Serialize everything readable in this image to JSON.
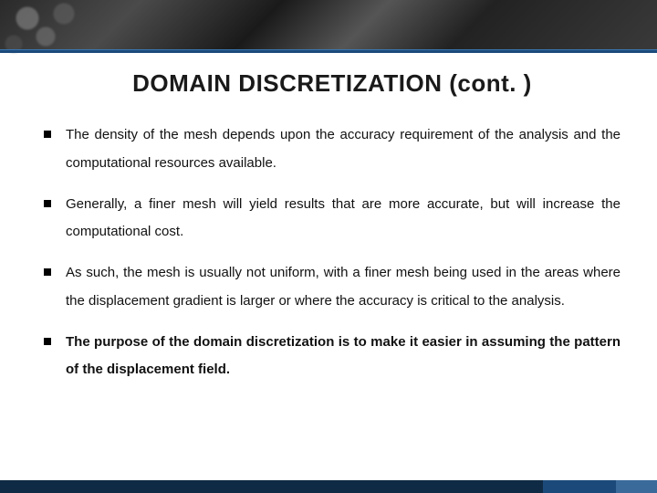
{
  "banner": {
    "bg_gradient": "gears-grayscale",
    "accent_line_color": "#1b4a7a"
  },
  "title": "DOMAIN DISCRETIZATION (cont. )",
  "bullets": [
    {
      "text": "The density of the mesh depends upon the accuracy requirement of the analysis and the computational resources available.",
      "bold": false
    },
    {
      "text": "Generally, a finer mesh will yield results that are more accurate, but will increase the computational cost.",
      "bold": false
    },
    {
      "text": "As such, the mesh is usually not uniform, with a finer mesh being used in the areas where the displacement gradient is larger or where the accuracy is critical to the analysis.",
      "bold": false
    },
    {
      "text": "The purpose of the domain discretization is to make it easier in assuming the pattern of the displacement field.",
      "bold": true
    }
  ],
  "footer": {
    "base_color": "#0f2a44",
    "seg1_color": "#1b4a7a",
    "seg2_color": "#3a6a9a"
  },
  "typography": {
    "title_fontsize": 26,
    "title_weight": "bold",
    "body_fontsize": 15,
    "line_height": 2.05
  },
  "colors": {
    "text": "#111111",
    "background": "#ffffff",
    "bullet_marker": "#000000"
  }
}
